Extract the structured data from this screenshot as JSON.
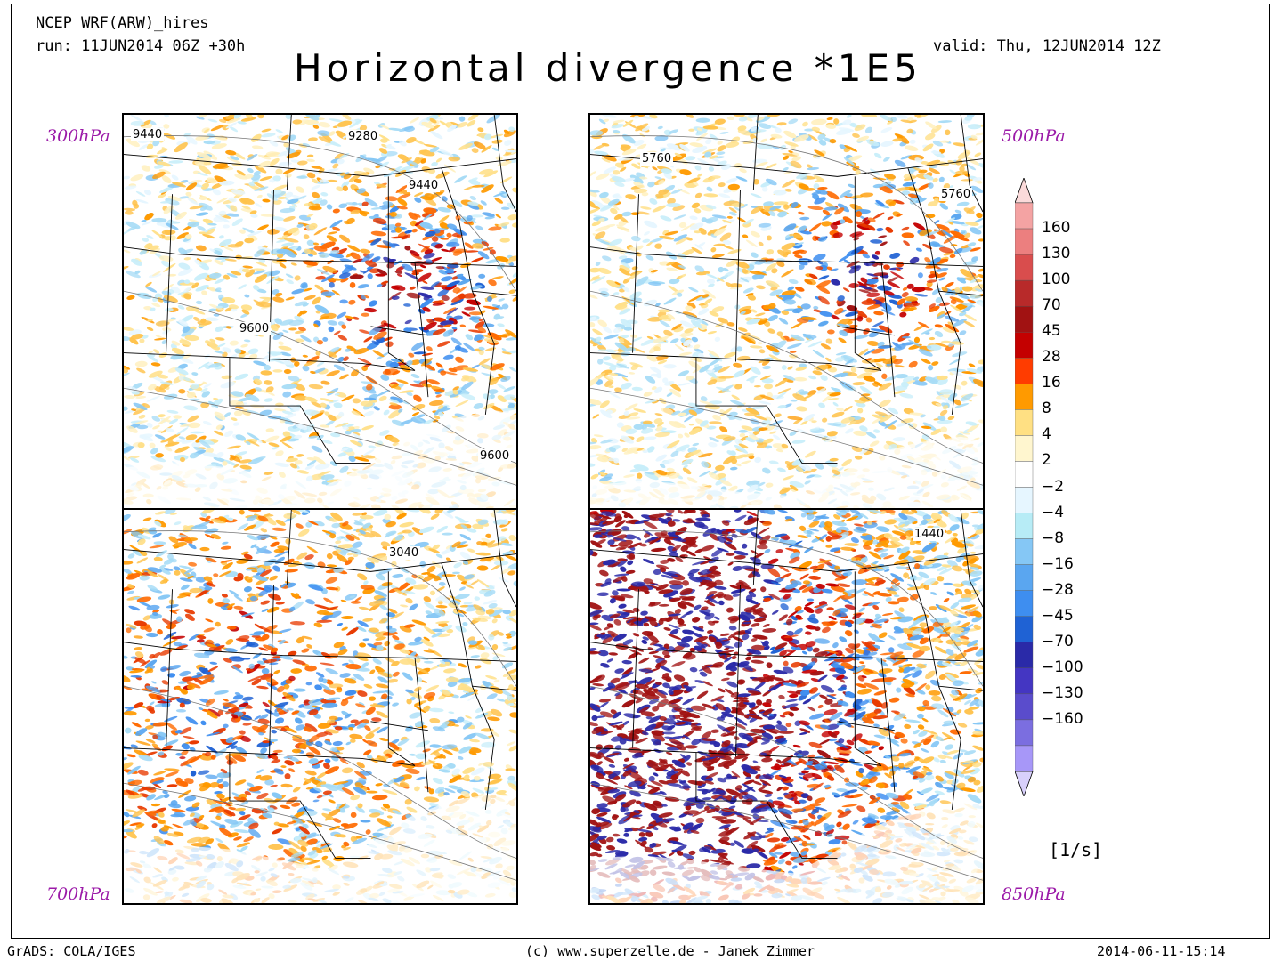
{
  "header": {
    "model": "NCEP WRF(ARW)_hires",
    "run": "run: 11JUN2014 06Z +30h",
    "valid": "valid: Thu, 12JUN2014 12Z",
    "title": "Horizontal divergence *1E5"
  },
  "panels": [
    {
      "level": "300hPa",
      "contours": [
        "9440",
        "9280",
        "9440",
        "9600",
        "9600"
      ]
    },
    {
      "level": "500hPa",
      "contours": [
        "5760",
        "5760"
      ]
    },
    {
      "level": "700hPa",
      "contours": [
        "3040"
      ]
    },
    {
      "level": "850hPa",
      "contours": [
        "1440"
      ]
    }
  ],
  "colorbar": {
    "labels": [
      "160",
      "130",
      "100",
      "70",
      "45",
      "28",
      "16",
      "8",
      "4",
      "2",
      "−2",
      "−4",
      "−8",
      "−16",
      "−28",
      "−45",
      "−70",
      "−100",
      "−130",
      "−160"
    ],
    "colors": [
      "#fbdada",
      "#f4a3a3",
      "#ec7f7f",
      "#d94d4d",
      "#b82a2a",
      "#a11212",
      "#c40000",
      "#ff3c00",
      "#ff9a00",
      "#ffe083",
      "#fff6cf",
      "#ffffff",
      "#e6f6ff",
      "#b7ecf6",
      "#85c7f5",
      "#5aa6f0",
      "#3e8ef0",
      "#1f62d4",
      "#2a2aa8",
      "#4436c2",
      "#5a4ccc",
      "#7b6ee0",
      "#a797f8",
      "#d8d0fb"
    ],
    "unit": "[1/s]"
  },
  "footer": {
    "left": "GrADS: COLA/IGES",
    "center": "(c) www.superzelle.de - Janek Zimmer",
    "right": "2014-06-11-15:14"
  }
}
